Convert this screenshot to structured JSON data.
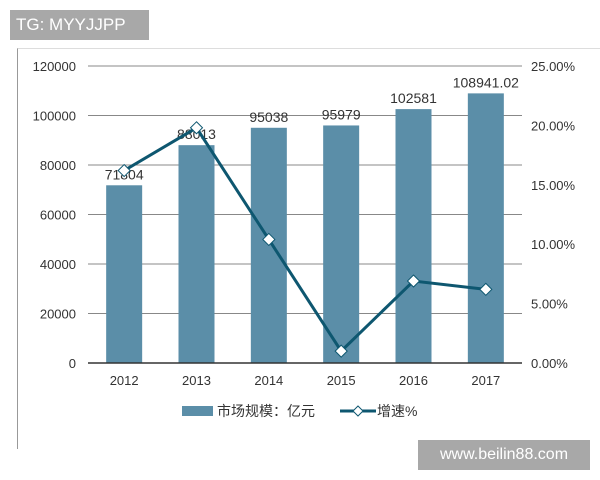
{
  "watermarks": {
    "top": "TG: MYYJJPP",
    "bottom": "www.beilin88.com"
  },
  "colors": {
    "bar": "#5b8ea8",
    "line": "#0e5770",
    "marker_fill": "#ffffff",
    "grid": "#888888"
  },
  "legend": {
    "bar_label": "市场规模：亿元",
    "line_label": "增速%"
  },
  "chart_data": {
    "type": "bar",
    "title": "",
    "xlabel": "",
    "ylabel": "",
    "categories": [
      "2012",
      "2013",
      "2014",
      "2015",
      "2016",
      "2017"
    ],
    "series": [
      {
        "name": "市场规模：亿元",
        "type": "bar",
        "axis": "left",
        "values": [
          71804,
          88013,
          95038,
          95979,
          102581,
          108941.02
        ],
        "labels": [
          "71804",
          "88013",
          "95038",
          "95979",
          "102581",
          "108941.02"
        ]
      },
      {
        "name": "增速%",
        "type": "line",
        "axis": "right",
        "values": [
          16.2,
          19.8,
          10.4,
          1.0,
          6.9,
          6.2
        ]
      }
    ],
    "left_axis": {
      "ylim": [
        0,
        120000
      ],
      "ticks": [
        "0",
        "20000",
        "40000",
        "60000",
        "80000",
        "100000",
        "120000"
      ]
    },
    "right_axis": {
      "ylim": [
        0,
        25
      ],
      "ticks": [
        "0.00%",
        "5.00%",
        "10.00%",
        "15.00%",
        "20.00%",
        "25.00%"
      ]
    },
    "grid": true,
    "legend_position": "bottom"
  }
}
